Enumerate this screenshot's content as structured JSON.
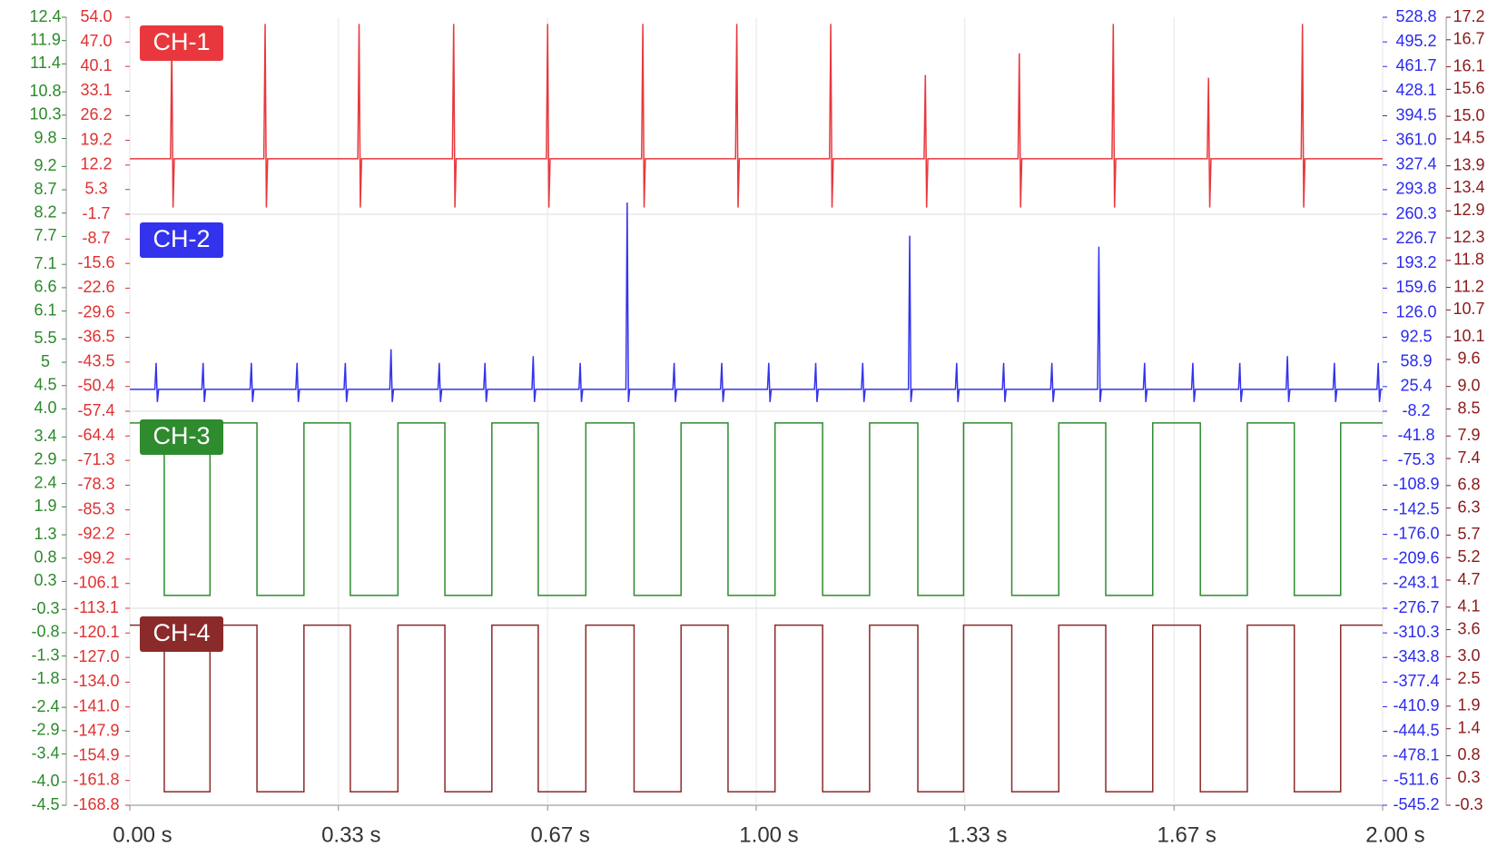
{
  "chart_data": {
    "type": "line",
    "xlim": [
      0,
      2
    ],
    "xticks": [
      {
        "value": 0,
        "label": "0.00 s"
      },
      {
        "value": 0.333,
        "label": "0.33 s"
      },
      {
        "value": 0.667,
        "label": "0.67 s"
      },
      {
        "value": 1,
        "label": "1.00 s"
      },
      {
        "value": 1.333,
        "label": "1.33 s"
      },
      {
        "value": 1.667,
        "label": "1.67 s"
      },
      {
        "value": 2,
        "label": "2.00 s"
      }
    ],
    "grid": true,
    "y_axes": [
      {
        "color": "#2a8a2a",
        "ylim": [
          -4.5,
          12.4
        ],
        "yticks": [
          12.4,
          11.9,
          11.4,
          10.8,
          10.3,
          9.8,
          9.2,
          8.7,
          8.2,
          7.7,
          7.1,
          6.6,
          6.1,
          5.5,
          5,
          4.5,
          {
            "value": 4,
            "label": "4.0"
          },
          3.4,
          2.9,
          2.4,
          1.9,
          1.3,
          0.8,
          0.3,
          -0.3,
          -0.8,
          -1.3,
          -1.8,
          -2.4,
          -2.9,
          -3.4,
          {
            "value": -4,
            "label": "-4.0"
          },
          -4.5
        ]
      },
      {
        "color": "#e03030",
        "ylim": [
          -168.8,
          54
        ],
        "yticks": [
          {
            "value": 54,
            "label": "54.0"
          },
          {
            "value": 47,
            "label": "47.0"
          },
          40.1,
          33.1,
          26.2,
          19.2,
          12.2,
          5.3,
          -1.7,
          -8.7,
          -15.6,
          -22.6,
          -29.6,
          -36.5,
          -43.5,
          -50.4,
          -57.4,
          -64.4,
          -71.3,
          -78.3,
          -85.3,
          -92.2,
          -99.2,
          -106.1,
          -113.1,
          -120.1,
          {
            "value": -127,
            "label": "-127.0"
          },
          {
            "value": -134,
            "label": "-134.0"
          },
          {
            "value": -141,
            "label": "-141.0"
          },
          -147.9,
          -154.9,
          -161.8,
          -168.8
        ]
      },
      {
        "color": "#2a2af0",
        "ylim": [
          -545.2,
          528.8
        ],
        "yticks": [
          528.8,
          495.2,
          461.7,
          428.1,
          394.5,
          {
            "value": 361,
            "label": "361.0"
          },
          327.4,
          293.8,
          260.3,
          226.7,
          193.2,
          159.6,
          {
            "value": 126,
            "label": "126.0"
          },
          92.5,
          58.9,
          25.4,
          -8.2,
          -41.8,
          -75.3,
          -108.9,
          -142.5,
          {
            "value": -176,
            "label": "-176.0"
          },
          -209.6,
          -243.1,
          -276.7,
          -310.3,
          -343.8,
          -377.4,
          -410.9,
          -444.5,
          -478.1,
          -511.6,
          -545.2
        ]
      },
      {
        "color": "#8b1a1a",
        "ylim": [
          -0.3,
          17.2
        ],
        "yticks": [
          17.2,
          16.7,
          16.1,
          15.6,
          {
            "value": 15,
            "label": "15.0"
          },
          14.5,
          13.9,
          13.4,
          12.9,
          12.3,
          11.8,
          11.2,
          10.7,
          10.1,
          9.6,
          {
            "value": 9,
            "label": "9.0"
          },
          8.5,
          7.9,
          7.4,
          6.8,
          6.3,
          5.7,
          5.2,
          4.7,
          4.1,
          3.6,
          {
            "value": 3,
            "label": "3.0"
          },
          2.5,
          1.9,
          1.4,
          0.8,
          0.3,
          -0.3
        ]
      }
    ],
    "series": [
      {
        "name": "CH-1",
        "color": "#e8383d",
        "axis": 1,
        "x": [
          0,
          0.065,
          0.067,
          0.069,
          0.071,
          0.214,
          0.216,
          0.218,
          0.22,
          0.364,
          0.366,
          0.368,
          0.37,
          0.515,
          0.517,
          0.519,
          0.521,
          0.665,
          0.667,
          0.669,
          0.671,
          0.817,
          0.819,
          0.821,
          0.823,
          0.967,
          0.969,
          0.971,
          0.973,
          1.117,
          1.119,
          1.121,
          1.123,
          1.268,
          1.27,
          1.272,
          1.274,
          1.418,
          1.42,
          1.422,
          1.424,
          1.568,
          1.57,
          1.572,
          1.574,
          1.72,
          1.722,
          1.724,
          1.726,
          1.87,
          1.872,
          1.874,
          1.876,
          2
        ],
        "values": [
          14,
          14,
          46.5,
          0.2,
          14,
          14,
          52.1,
          0.2,
          14,
          14,
          52.1,
          0.2,
          14,
          14,
          52.1,
          0.2,
          14,
          14,
          52.1,
          0.2,
          14,
          14,
          52.1,
          0.2,
          14,
          14,
          52.1,
          0.2,
          14,
          14,
          52.1,
          0.2,
          14,
          14,
          37.7,
          0.2,
          14,
          14,
          43.8,
          0.2,
          14,
          14,
          52.1,
          0.2,
          14,
          14,
          36.9,
          0.2,
          14,
          14,
          52.1,
          0.2,
          14,
          14
        ]
      },
      {
        "name": "CH-2",
        "color": "#3333ee",
        "axis": 2,
        "x": [
          0,
          0.04,
          0.042,
          0.044,
          0.046,
          0.115,
          0.117,
          0.119,
          0.121,
          0.192,
          0.194,
          0.196,
          0.198,
          0.265,
          0.267,
          0.269,
          0.271,
          0.342,
          0.344,
          0.346,
          0.348,
          0.415,
          0.417,
          0.419,
          0.421,
          0.492,
          0.494,
          0.496,
          0.498,
          0.565,
          0.567,
          0.569,
          0.571,
          0.642,
          0.644,
          0.646,
          0.648,
          0.717,
          0.719,
          0.721,
          0.723,
          0.792,
          0.794,
          0.796,
          0.798,
          0.867,
          0.869,
          0.871,
          0.873,
          0.943,
          0.945,
          0.947,
          0.949,
          1.018,
          1.02,
          1.022,
          1.024,
          1.093,
          1.095,
          1.097,
          1.099,
          1.168,
          1.17,
          1.172,
          1.174,
          1.243,
          1.245,
          1.247,
          1.249,
          1.318,
          1.32,
          1.322,
          1.324,
          1.393,
          1.395,
          1.397,
          1.399,
          1.47,
          1.472,
          1.474,
          1.476,
          1.545,
          1.547,
          1.549,
          1.551,
          1.618,
          1.62,
          1.622,
          1.624,
          1.695,
          1.697,
          1.699,
          1.701,
          1.77,
          1.772,
          1.774,
          1.776,
          1.846,
          1.848,
          1.85,
          1.852,
          1.921,
          1.923,
          1.925,
          1.927,
          1.991,
          1.993,
          1.995,
          1.997,
          2
        ],
        "values": [
          21.7,
          21.7,
          57.7,
          4.4,
          21.7,
          21.7,
          57.7,
          4.4,
          21.7,
          21.7,
          57.7,
          4.4,
          21.7,
          21.7,
          57.7,
          4.4,
          21.7,
          21.7,
          57.7,
          4.4,
          21.7,
          21.7,
          76.3,
          4.4,
          21.7,
          21.7,
          57.7,
          4.4,
          21.7,
          21.7,
          57.7,
          4.4,
          21.7,
          21.7,
          66.9,
          4.4,
          21.7,
          21.7,
          57.7,
          4.4,
          21.7,
          21.7,
          276.3,
          4.4,
          21.7,
          21.7,
          57.7,
          4.4,
          21.7,
          21.7,
          57.7,
          4.4,
          21.7,
          21.7,
          57.7,
          4.4,
          21.7,
          21.7,
          57.7,
          4.4,
          21.7,
          21.7,
          57.7,
          4.4,
          21.7,
          21.7,
          231,
          4.4,
          21.7,
          21.7,
          57.7,
          4.4,
          21.7,
          21.7,
          57.7,
          4.4,
          21.7,
          21.7,
          57.7,
          4.4,
          21.7,
          21.7,
          216,
          4.4,
          21.7,
          21.7,
          57.7,
          4.4,
          21.7,
          21.7,
          57.7,
          4.4,
          21.7,
          21.7,
          57.7,
          4.4,
          21.7,
          21.7,
          66.9,
          4.4,
          21.7,
          21.7,
          57.7,
          4.4,
          21.7,
          21.7,
          57.7,
          4.4,
          21.7,
          21.7
        ]
      },
      {
        "name": "CH-3",
        "color": "#2e8b2e",
        "axis": 0,
        "x": [
          0,
          0.055,
          0.055,
          0.128,
          0.128,
          0.203,
          0.203,
          0.278,
          0.278,
          0.352,
          0.352,
          0.428,
          0.428,
          0.503,
          0.503,
          0.578,
          0.578,
          0.652,
          0.652,
          0.728,
          0.728,
          0.805,
          0.805,
          0.88,
          0.88,
          0.955,
          0.955,
          1.03,
          1.03,
          1.106,
          1.106,
          1.181,
          1.181,
          1.258,
          1.258,
          1.331,
          1.331,
          1.408,
          1.408,
          1.483,
          1.483,
          1.558,
          1.558,
          1.633,
          1.633,
          1.709,
          1.709,
          1.784,
          1.784,
          1.859,
          1.859,
          1.933,
          1.933,
          2
        ],
        "values": [
          3.7,
          3.7,
          0,
          0,
          3.7,
          3.7,
          0,
          0,
          3.7,
          3.7,
          0,
          0,
          3.7,
          3.7,
          0,
          0,
          3.7,
          3.7,
          0,
          0,
          3.7,
          3.7,
          0,
          0,
          3.7,
          3.7,
          0,
          0,
          3.7,
          3.7,
          0,
          0,
          3.7,
          3.7,
          0,
          0,
          3.7,
          3.7,
          0,
          0,
          3.7,
          3.7,
          0,
          0,
          3.7,
          3.7,
          0,
          0,
          3.7,
          3.7,
          0,
          0,
          3.7,
          3.7
        ]
      },
      {
        "name": "CH-4",
        "color": "#8b2a2a",
        "axis": 3,
        "x": [
          0,
          0.055,
          0.055,
          0.128,
          0.128,
          0.203,
          0.203,
          0.278,
          0.278,
          0.352,
          0.352,
          0.428,
          0.428,
          0.503,
          0.503,
          0.578,
          0.578,
          0.652,
          0.652,
          0.728,
          0.728,
          0.805,
          0.805,
          0.88,
          0.88,
          0.955,
          0.955,
          1.03,
          1.03,
          1.106,
          1.106,
          1.181,
          1.181,
          1.258,
          1.258,
          1.331,
          1.331,
          1.408,
          1.408,
          1.483,
          1.483,
          1.558,
          1.558,
          1.633,
          1.633,
          1.709,
          1.709,
          1.784,
          1.784,
          1.859,
          1.859,
          1.933,
          1.933,
          2
        ],
        "values": [
          3.7,
          3.7,
          0,
          0,
          3.7,
          3.7,
          0,
          0,
          3.7,
          3.7,
          0,
          0,
          3.7,
          3.7,
          0,
          0,
          3.7,
          3.7,
          0,
          0,
          3.7,
          3.7,
          0,
          0,
          3.7,
          3.7,
          0,
          0,
          3.7,
          3.7,
          0,
          0,
          3.7,
          3.7,
          0,
          0,
          3.7,
          3.7,
          0,
          0,
          3.7,
          3.7,
          0,
          0,
          3.7,
          3.7,
          0,
          0,
          3.7,
          3.7,
          0,
          0,
          3.7,
          3.7
        ]
      }
    ]
  }
}
